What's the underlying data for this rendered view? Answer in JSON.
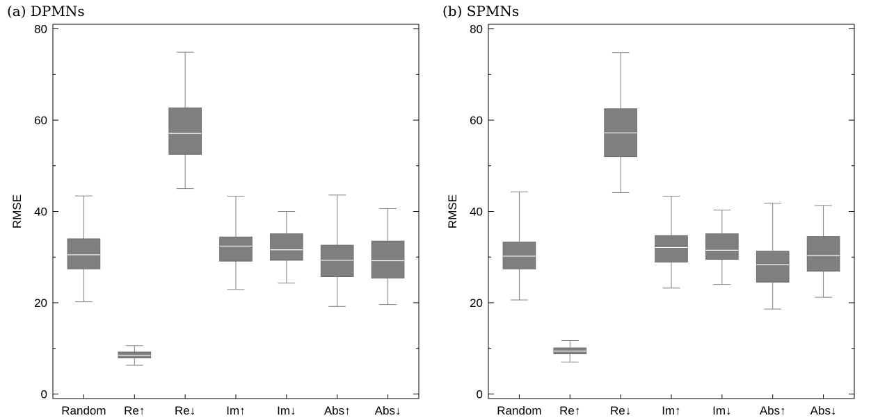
{
  "chart_data": [
    {
      "panel_label": "(a) DPMNs",
      "type": "box",
      "ylabel": "RMSE",
      "ylim": [
        -1,
        81
      ],
      "yticks": [
        0,
        20,
        40,
        60,
        80
      ],
      "categories": [
        "Random",
        "Re↑",
        "Re↓",
        "Im↑",
        "Im↓",
        "Abs↑",
        "Abs↓"
      ],
      "boxes": [
        {
          "whisker_low": 20.2,
          "q1": 27.4,
          "median": 30.5,
          "q3": 34.0,
          "whisker_high": 43.4
        },
        {
          "whisker_low": 6.3,
          "q1": 7.9,
          "median": 8.5,
          "q3": 9.2,
          "whisker_high": 10.6
        },
        {
          "whisker_low": 45.0,
          "q1": 52.5,
          "median": 57.1,
          "q3": 62.7,
          "whisker_high": 74.9
        },
        {
          "whisker_low": 22.9,
          "q1": 29.1,
          "median": 32.4,
          "q3": 34.4,
          "whisker_high": 43.3
        },
        {
          "whisker_low": 24.3,
          "q1": 29.3,
          "median": 31.6,
          "q3": 35.1,
          "whisker_high": 40.0
        },
        {
          "whisker_low": 19.2,
          "q1": 25.7,
          "median": 29.3,
          "q3": 32.6,
          "whisker_high": 43.6
        },
        {
          "whisker_low": 19.6,
          "q1": 25.4,
          "median": 29.2,
          "q3": 33.5,
          "whisker_high": 40.6
        }
      ],
      "box_color": "#7f7f7f",
      "median_color": "#ffffff",
      "grid": false
    },
    {
      "panel_label": "(b) SPMNs",
      "type": "box",
      "ylabel": "RMSE",
      "ylim": [
        -1,
        81
      ],
      "yticks": [
        0,
        20,
        40,
        60,
        80
      ],
      "categories": [
        "Random",
        "Re↑",
        "Re↓",
        "Im↑",
        "Im↓",
        "Abs↑",
        "Abs↓"
      ],
      "boxes": [
        {
          "whisker_low": 20.6,
          "q1": 27.4,
          "median": 30.2,
          "q3": 33.3,
          "whisker_high": 44.3
        },
        {
          "whisker_low": 7.0,
          "q1": 8.8,
          "median": 9.4,
          "q3": 10.1,
          "whisker_high": 11.7
        },
        {
          "whisker_low": 44.1,
          "q1": 52.0,
          "median": 57.2,
          "q3": 62.5,
          "whisker_high": 74.8
        },
        {
          "whisker_low": 23.2,
          "q1": 28.9,
          "median": 32.1,
          "q3": 34.7,
          "whisker_high": 43.3
        },
        {
          "whisker_low": 24.0,
          "q1": 29.5,
          "median": 31.5,
          "q3": 35.1,
          "whisker_high": 40.3
        },
        {
          "whisker_low": 18.6,
          "q1": 24.5,
          "median": 28.3,
          "q3": 31.3,
          "whisker_high": 41.8
        },
        {
          "whisker_low": 21.2,
          "q1": 26.9,
          "median": 30.3,
          "q3": 34.5,
          "whisker_high": 41.3
        }
      ],
      "box_color": "#7f7f7f",
      "median_color": "#ffffff",
      "grid": false
    }
  ]
}
